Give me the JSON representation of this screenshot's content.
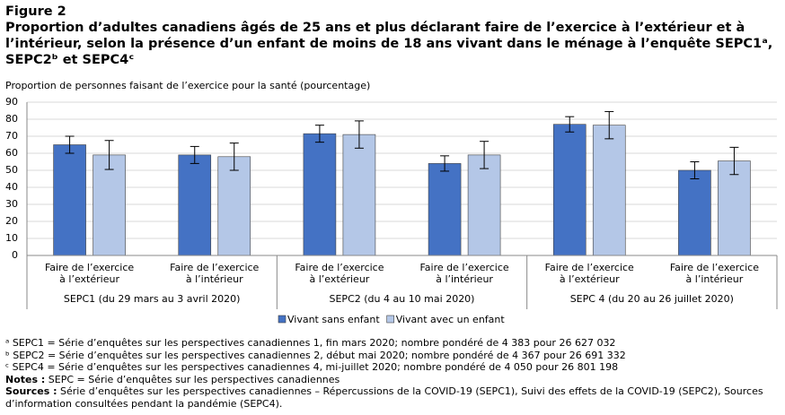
{
  "figure_label": "Figure 2",
  "chart_data": {
    "type": "bar",
    "title": "Proportion d’adultes canadiens âgés de 25 ans et plus déclarant faire de l’exercice à l’extérieur et à l’intérieur,  selon la présence d’un enfant de moins de 18 ans vivant dans le ménage à l’enquête SEPC1ᵃ, SEPC2ᵇ et SEPC4ᶜ",
    "y_label": "Proportion de personnes faisant de l’exercice pour la santé (pourcentage)",
    "categories": [
      "Faire de l’exercice\nà l’extérieur",
      "Faire de l’exercice\nà l’intérieur",
      "Faire de l’exercice\nà l’extérieur",
      "Faire de l’exercice\nà l’intérieur",
      "Faire de l’exercice\nà l’extérieur",
      "Faire de l’exercice\nà l’intérieur"
    ],
    "groups": [
      "SEPC1 (du 29 mars au 3 avril 2020)",
      "SEPC2 (du 4 au 10 mai 2020)",
      "SEPC 4 (du 20 au 26 juillet 2020)"
    ],
    "series": [
      {
        "name": "Vivant sans enfant",
        "color": "#4472c4",
        "values": [
          65,
          59,
          71.5,
          54,
          77,
          50
        ],
        "errors": [
          5,
          5,
          5,
          4.5,
          4.5,
          5
        ]
      },
      {
        "name": "Vivant avec un enfant",
        "color": "#b4c7e7",
        "values": [
          59,
          58,
          71,
          59,
          76.5,
          55.5
        ],
        "errors": [
          8.5,
          8,
          8,
          8,
          8,
          8
        ]
      }
    ],
    "ylim": [
      0,
      90
    ],
    "yticks": [
      0,
      10,
      20,
      30,
      40,
      50,
      60,
      70,
      80,
      90
    ],
    "grid": true
  },
  "footnotes": [
    {
      "marker": "ᵃ",
      "text": "SEPC1 = Série d’enquêtes sur les perspectives canadiennes 1, fin mars 2020; nombre pondéré de 4 383 pour 26 627 032"
    },
    {
      "marker": "ᵇ",
      "text": "SEPC2 = Série d’enquêtes sur les perspectives canadiennes 2, début mai 2020; nombre pondéré de 4 367 pour 26 691 332"
    },
    {
      "marker": "ᶜ",
      "text": "SEPC4 = Série d’enquêtes sur les perspectives canadiennes 4, mi-juillet 2020; nombre pondéré de 4 050 pour 26 801 198"
    }
  ],
  "notes": {
    "label": "Notes :",
    "text": "SEPC = Série d’enquêtes sur les perspectives canadiennes"
  },
  "sources": {
    "label": "Sources :",
    "text": "Série d’enquêtes sur les perspectives canadiennes – Répercussions de la COVID-19 (SEPC1), Suivi des effets de la COVID-19 (SEPC2), Sources d’information consultées pendant la pandémie (SEPC4)."
  }
}
